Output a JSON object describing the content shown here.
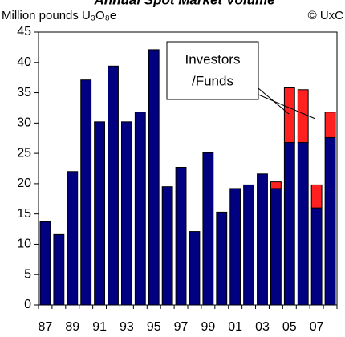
{
  "chart_data": {
    "type": "stacked_bar",
    "title": "Annual Spot Market Volume",
    "subtitle": "Million pounds U₃O₈e",
    "credit": "© UxC",
    "annotation": [
      "Investors",
      "/Funds"
    ],
    "categories": [
      "87",
      null,
      "89",
      null,
      "91",
      null,
      "93",
      null,
      "95",
      null,
      "97",
      null,
      "99",
      null,
      "01",
      null,
      "03",
      null,
      "05",
      null,
      "07",
      null
    ],
    "series": [
      {
        "color": "#000080",
        "values": [
          13.7,
          11.6,
          22,
          37.1,
          30.2,
          39.4,
          30.2,
          31.8,
          42.1,
          19.5,
          22.7,
          12.1,
          25.1,
          15.3,
          19.2,
          19.8,
          21.6,
          19.2,
          26.8,
          26.8,
          16,
          27.6
        ]
      },
      {
        "color": "#ff2020",
        "values": [
          null,
          null,
          null,
          null,
          null,
          null,
          null,
          null,
          null,
          null,
          null,
          null,
          null,
          null,
          null,
          null,
          null,
          1.1,
          9,
          8.7,
          3.8,
          4.2
        ]
      }
    ],
    "ylim": [
      0,
      45
    ],
    "yticks": [
      0,
      5,
      10,
      15,
      20,
      25,
      30,
      35,
      40,
      45
    ],
    "grid": false
  }
}
